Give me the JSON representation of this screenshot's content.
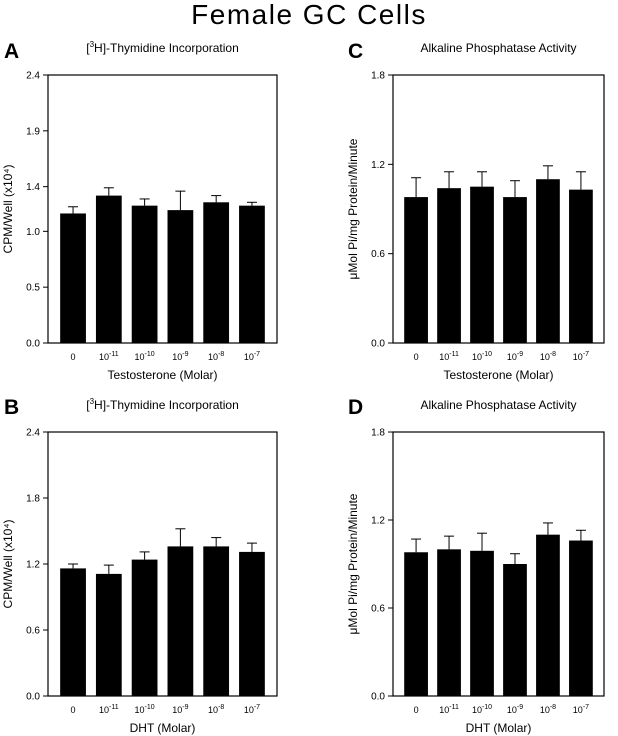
{
  "figure_title": "Female GC Cells",
  "chart_data": [
    {
      "panel": "A",
      "type": "bar",
      "title": "[3H]-Thymidine Incorporation",
      "title_sup": "3",
      "title_pre": "[",
      "title_post": "H]-Thymidine Incorporation",
      "xlabel": "Testosterone (Molar)",
      "ylabel": "CPM/Well (x10⁴)",
      "ylim": [
        0,
        2.4
      ],
      "yticks": [
        "0.0",
        "0.5",
        "1.0",
        "1.4",
        "1.9",
        "2.4"
      ],
      "categories": [
        "0",
        "10-11",
        "10-10",
        "10-9",
        "10-8",
        "10-7"
      ],
      "values": [
        1.16,
        1.32,
        1.23,
        1.19,
        1.26,
        1.23
      ],
      "errors": [
        0.06,
        0.07,
        0.06,
        0.17,
        0.06,
        0.03
      ]
    },
    {
      "panel": "C",
      "type": "bar",
      "title": "Alkaline Phosphatase Activity",
      "xlabel": "Testosterone (Molar)",
      "ylabel": "μMol Pi/mg Protein/Minute",
      "ylim": [
        0,
        1.8
      ],
      "yticks": [
        "0.0",
        "0.6",
        "1.2",
        "1.8"
      ],
      "categories": [
        "0",
        "10-11",
        "10-10",
        "10-9",
        "10-8",
        "10-7"
      ],
      "values": [
        0.98,
        1.04,
        1.05,
        0.98,
        1.1,
        1.03
      ],
      "errors": [
        0.13,
        0.11,
        0.1,
        0.11,
        0.09,
        0.12
      ]
    },
    {
      "panel": "B",
      "type": "bar",
      "title": "[3H]-Thymidine Incorporation",
      "title_sup": "3",
      "title_pre": "[",
      "title_post": "H]-Thymidine Incorporation",
      "xlabel": "DHT (Molar)",
      "ylabel": "CPM/Well (x10⁴)",
      "ylim": [
        0,
        2.4
      ],
      "yticks": [
        "0.0",
        "0.6",
        "1.2",
        "1.8",
        "2.4"
      ],
      "categories": [
        "0",
        "10-11",
        "10-10",
        "10-9",
        "10-8",
        "10-7"
      ],
      "values": [
        1.16,
        1.11,
        1.24,
        1.36,
        1.36,
        1.31
      ],
      "errors": [
        0.04,
        0.08,
        0.07,
        0.16,
        0.08,
        0.08
      ]
    },
    {
      "panel": "D",
      "type": "bar",
      "title": "Alkaline Phosphatase Activity",
      "xlabel": "DHT (Molar)",
      "ylabel": "μMol Pi/mg Protein/Minute",
      "ylim": [
        0,
        1.8
      ],
      "yticks": [
        "0.0",
        "0.6",
        "1.2",
        "1.8"
      ],
      "categories": [
        "0",
        "10-11",
        "10-10",
        "10-9",
        "10-8",
        "10-7"
      ],
      "values": [
        0.98,
        1.0,
        0.99,
        0.9,
        1.1,
        1.06
      ],
      "errors": [
        0.09,
        0.09,
        0.12,
        0.07,
        0.08,
        0.07
      ]
    }
  ]
}
